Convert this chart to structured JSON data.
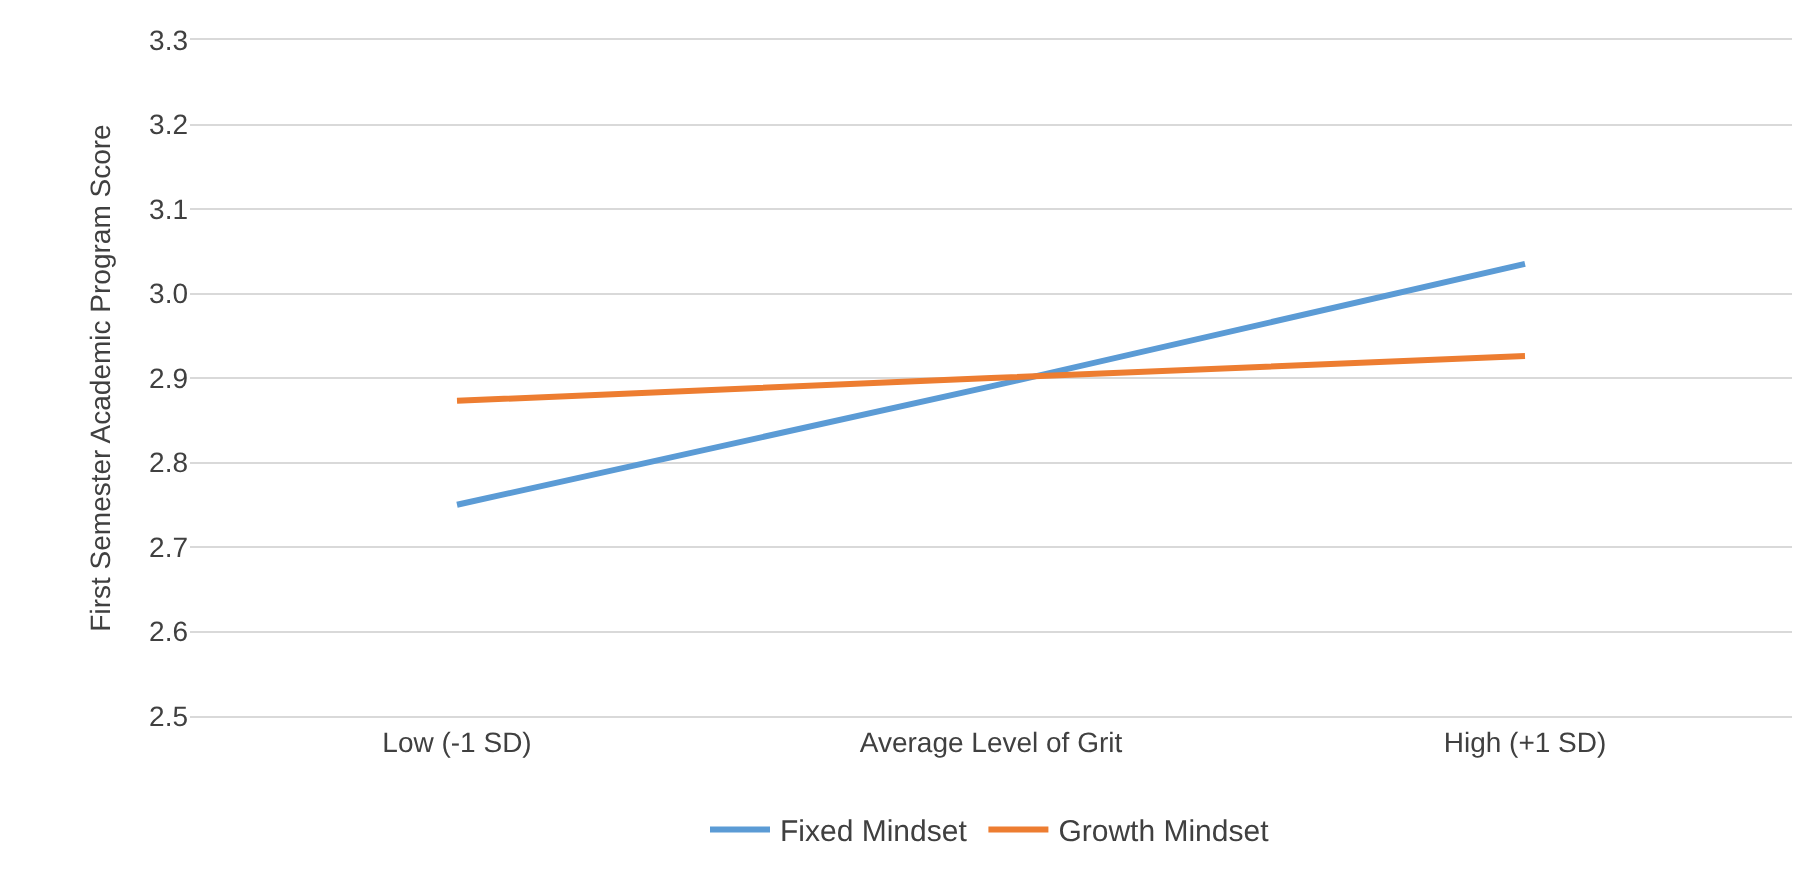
{
  "chart_data": {
    "type": "line",
    "ylabel": "First Semester Academic Program Score",
    "categories": [
      "Low (-1 SD)",
      "Average Level of Grit",
      "High (+1 SD)"
    ],
    "series": [
      {
        "name": "Fixed Mindset",
        "color": "#5b9bd5",
        "values": [
          2.75,
          2.89,
          3.035
        ]
      },
      {
        "name": "Growth Mindset",
        "color": "#ed7d31",
        "values": [
          2.873,
          2.9,
          2.926
        ]
      }
    ],
    "ylim": [
      2.5,
      3.3
    ],
    "yticks": [
      2.5,
      2.6,
      2.7,
      2.8,
      2.9,
      {
        "value": 3.0,
        "label": "3.0"
      },
      3.1,
      3.2,
      3.3
    ],
    "grid": "y",
    "legend": "bottom",
    "marker": "none",
    "line_style": "solid"
  }
}
